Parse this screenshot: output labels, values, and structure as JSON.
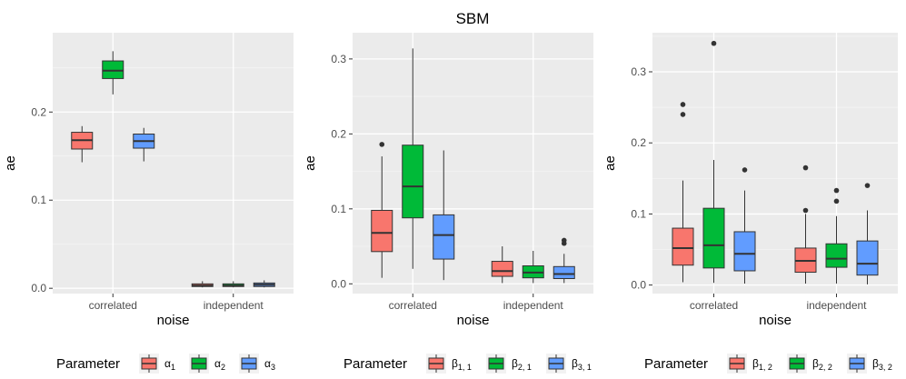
{
  "figure": {
    "title": "SBM"
  },
  "chart_data": [
    {
      "type": "boxplot",
      "xlabel": "noise",
      "ylabel": "ae",
      "ylim": [
        -0.006,
        0.29
      ],
      "yticks": [
        0.0,
        0.1,
        0.2
      ],
      "ytick_labels": [
        "0.0",
        "0.1",
        "0.2"
      ],
      "categories": [
        "correlated",
        "independent"
      ],
      "legend": {
        "title": "Parameter",
        "placement": "bottom",
        "entries": [
          {
            "base": "α",
            "sub": "1"
          },
          {
            "base": "α",
            "sub": "2"
          },
          {
            "base": "α",
            "sub": "3"
          }
        ]
      },
      "series": [
        {
          "color": "#F8766D",
          "boxes": [
            {
              "min": 0.143,
              "q1": 0.158,
              "median": 0.168,
              "q3": 0.177,
              "max": 0.184,
              "outliers": []
            },
            {
              "min": 0.001,
              "q1": 0.002,
              "median": 0.003,
              "q3": 0.005,
              "max": 0.008,
              "outliers": []
            }
          ]
        },
        {
          "color": "#00BA38",
          "boxes": [
            {
              "min": 0.22,
              "q1": 0.238,
              "median": 0.247,
              "q3": 0.258,
              "max": 0.269,
              "outliers": []
            },
            {
              "min": 0.001,
              "q1": 0.002,
              "median": 0.003,
              "q3": 0.005,
              "max": 0.008,
              "outliers": []
            }
          ]
        },
        {
          "color": "#619CFF",
          "boxes": [
            {
              "min": 0.144,
              "q1": 0.159,
              "median": 0.167,
              "q3": 0.175,
              "max": 0.182,
              "outliers": []
            },
            {
              "min": 0.001,
              "q1": 0.002,
              "median": 0.004,
              "q3": 0.006,
              "max": 0.009,
              "outliers": []
            }
          ]
        }
      ]
    },
    {
      "type": "boxplot",
      "xlabel": "noise",
      "ylabel": "ae",
      "ylim": [
        -0.013,
        0.335
      ],
      "yticks": [
        0.0,
        0.1,
        0.2,
        0.3
      ],
      "ytick_labels": [
        "0.0",
        "0.1",
        "0.2",
        "0.3"
      ],
      "categories": [
        "correlated",
        "independent"
      ],
      "legend": {
        "title": "Parameter",
        "placement": "bottom",
        "entries": [
          {
            "base": "β",
            "sub": "1, 1"
          },
          {
            "base": "β",
            "sub": "2, 1"
          },
          {
            "base": "β",
            "sub": "3, 1"
          }
        ]
      },
      "series": [
        {
          "color": "#F8766D",
          "boxes": [
            {
              "min": 0.008,
              "q1": 0.043,
              "median": 0.068,
              "q3": 0.098,
              "max": 0.17,
              "outliers": [
                0.186
              ]
            },
            {
              "min": 0.001,
              "q1": 0.01,
              "median": 0.017,
              "q3": 0.03,
              "max": 0.05,
              "outliers": []
            }
          ]
        },
        {
          "color": "#00BA38",
          "boxes": [
            {
              "min": 0.02,
              "q1": 0.088,
              "median": 0.13,
              "q3": 0.185,
              "max": 0.314,
              "outliers": []
            },
            {
              "min": 0.001,
              "q1": 0.008,
              "median": 0.015,
              "q3": 0.024,
              "max": 0.044,
              "outliers": []
            }
          ]
        },
        {
          "color": "#619CFF",
          "boxes": [
            {
              "min": 0.005,
              "q1": 0.033,
              "median": 0.065,
              "q3": 0.092,
              "max": 0.178,
              "outliers": []
            },
            {
              "min": 0.001,
              "q1": 0.007,
              "median": 0.013,
              "q3": 0.023,
              "max": 0.04,
              "outliers": [
                0.054,
                0.058
              ]
            }
          ]
        }
      ]
    },
    {
      "type": "boxplot",
      "xlabel": "noise",
      "ylabel": "ae",
      "ylim": [
        -0.012,
        0.355
      ],
      "yticks": [
        0.0,
        0.1,
        0.2,
        0.3
      ],
      "ytick_labels": [
        "0.0",
        "0.1",
        "0.2",
        "0.3"
      ],
      "categories": [
        "correlated",
        "independent"
      ],
      "legend": {
        "title": "Parameter",
        "placement": "bottom",
        "entries": [
          {
            "base": "β",
            "sub": "1, 2"
          },
          {
            "base": "β",
            "sub": "2, 2"
          },
          {
            "base": "β",
            "sub": "3, 2"
          }
        ]
      },
      "series": [
        {
          "color": "#F8766D",
          "boxes": [
            {
              "min": 0.004,
              "q1": 0.028,
              "median": 0.052,
              "q3": 0.08,
              "max": 0.147,
              "outliers": [
                0.24,
                0.254
              ]
            },
            {
              "min": 0.002,
              "q1": 0.018,
              "median": 0.034,
              "q3": 0.052,
              "max": 0.1,
              "outliers": [
                0.105,
                0.165
              ]
            }
          ]
        },
        {
          "color": "#00BA38",
          "boxes": [
            {
              "min": 0.003,
              "q1": 0.024,
              "median": 0.056,
              "q3": 0.108,
              "max": 0.176,
              "outliers": [
                0.34
              ]
            },
            {
              "min": 0.002,
              "q1": 0.025,
              "median": 0.037,
              "q3": 0.058,
              "max": 0.097,
              "outliers": [
                0.118,
                0.133
              ]
            }
          ]
        },
        {
          "color": "#619CFF",
          "boxes": [
            {
              "min": 0.002,
              "q1": 0.02,
              "median": 0.044,
              "q3": 0.075,
              "max": 0.133,
              "outliers": [
                0.162
              ]
            },
            {
              "min": 0.001,
              "q1": 0.014,
              "median": 0.03,
              "q3": 0.062,
              "max": 0.105,
              "outliers": [
                0.14
              ]
            }
          ]
        }
      ]
    }
  ]
}
